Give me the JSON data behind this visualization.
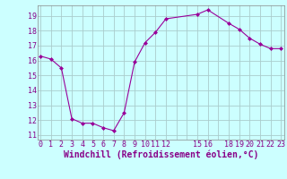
{
  "x": [
    0,
    1,
    2,
    3,
    4,
    5,
    6,
    7,
    8,
    9,
    10,
    11,
    12,
    15,
    16,
    18,
    19,
    20,
    21,
    22,
    23
  ],
  "y": [
    16.3,
    16.1,
    15.5,
    12.1,
    11.8,
    11.8,
    11.5,
    11.3,
    12.5,
    15.9,
    17.2,
    17.9,
    18.8,
    19.1,
    19.4,
    18.5,
    18.1,
    17.5,
    17.1,
    16.8,
    16.8
  ],
  "line_color": "#990099",
  "marker": "D",
  "marker_size": 2.0,
  "bg_color": "#ccffff",
  "grid_color": "#aacccc",
  "xlabel": "Windchill (Refroidissement éolien,°C)",
  "xlabel_color": "#880088",
  "xlabel_fontsize": 7,
  "ytick_labels": [
    "11",
    "12",
    "13",
    "14",
    "15",
    "16",
    "17",
    "18",
    "19"
  ],
  "ytick_vals": [
    11,
    12,
    13,
    14,
    15,
    16,
    17,
    18,
    19
  ],
  "xtick_labels": [
    "0",
    "1",
    "2",
    "3",
    "4",
    "5",
    "6",
    "7",
    "8",
    "9",
    "10",
    "11",
    "12",
    "",
    "",
    "15",
    "16",
    "",
    "18",
    "19",
    "20",
    "21",
    "22",
    "23"
  ],
  "xtick_vals": [
    0,
    1,
    2,
    3,
    4,
    5,
    6,
    7,
    8,
    9,
    10,
    11,
    12,
    13,
    14,
    15,
    16,
    17,
    18,
    19,
    20,
    21,
    22,
    23
  ],
  "xlim": [
    -0.3,
    23.3
  ],
  "ylim": [
    10.7,
    19.7
  ],
  "tick_color": "#880088",
  "tick_fontsize": 6.0
}
